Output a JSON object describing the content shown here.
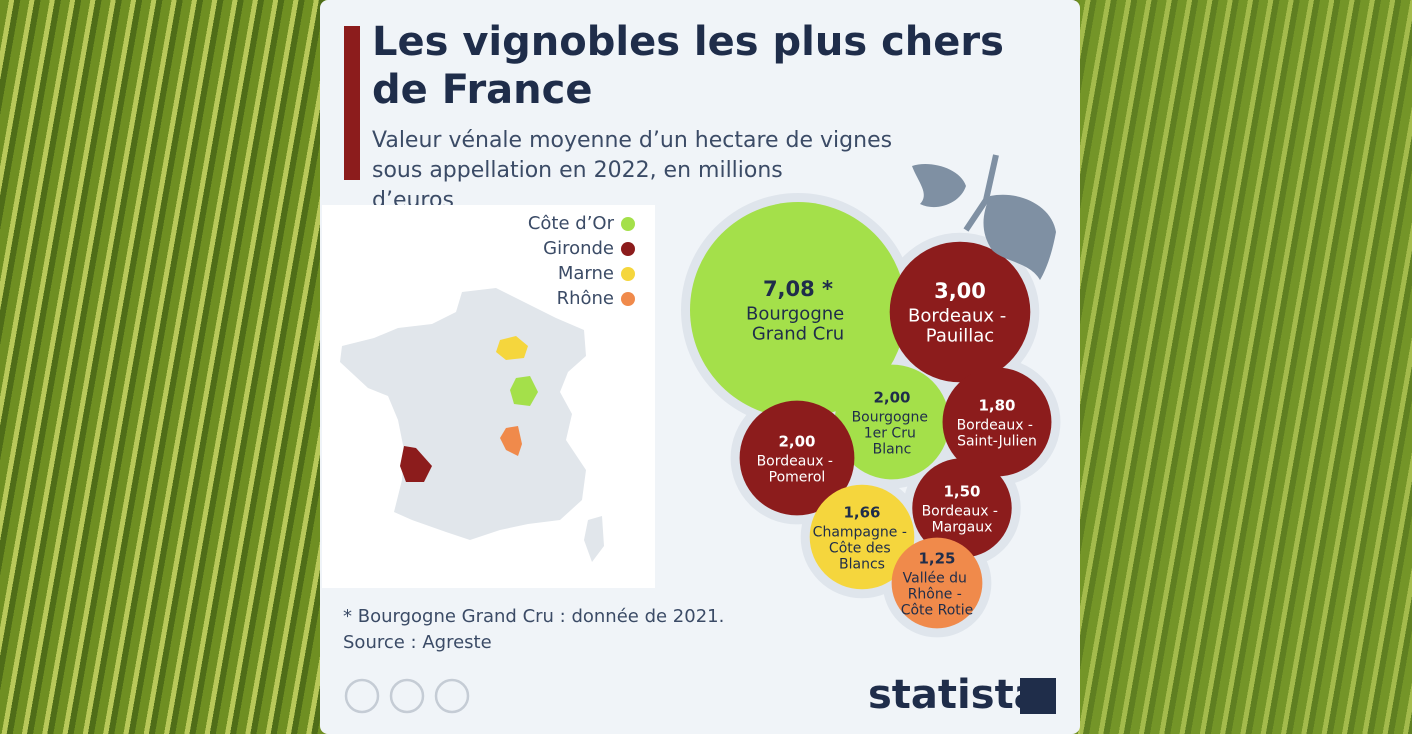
{
  "header": {
    "title": "Les vignobles les plus chers de France",
    "subtitle": "Valeur vénale moyenne d’un hectare de vignes sous appellation en 2022, en millions d’euros"
  },
  "chart_data": {
    "type": "bubble",
    "categories": [
      "Bourgogne Grand Cru",
      "Bordeaux - Pauillac",
      "Bourgogne 1er Cru Blanc",
      "Bordeaux - Pomerol",
      "Bordeaux - Saint-Julien",
      "Champagne - Côte des Blancs",
      "Bordeaux - Margaux",
      "Vallée du Rhône - Côte Rotie"
    ],
    "values": [
      7.08,
      3.0,
      2.0,
      2.0,
      1.8,
      1.66,
      1.5,
      1.25
    ],
    "value_labels": [
      "7,08 *",
      "3,00",
      "2,00",
      "2,00",
      "1,80",
      "1,66",
      "1,50",
      "1,25"
    ],
    "colors": [
      "#a4e04a",
      "#8c1c1c",
      "#a4e04a",
      "#8c1c1c",
      "#8c1c1c",
      "#f5d63d",
      "#8c1c1c",
      "#f08a4b"
    ],
    "legend": [
      {
        "name": "Côte d’Or",
        "color": "#a4e04a"
      },
      {
        "name": "Gironde",
        "color": "#8c1c1c"
      },
      {
        "name": "Marne",
        "color": "#f5d63d"
      },
      {
        "name": "Rhône",
        "color": "#f08a4b"
      }
    ]
  },
  "footer": {
    "note": "* Bourgogne Grand Cru : donnée de 2021.",
    "source": "Source : Agreste",
    "brand": "statista"
  }
}
